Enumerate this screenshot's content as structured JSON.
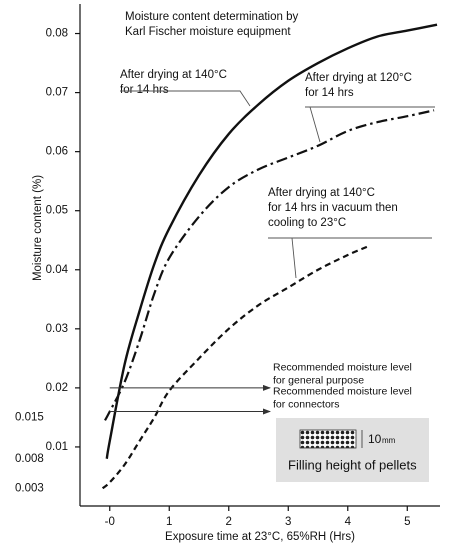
{
  "chart_data": {
    "type": "line",
    "title": [
      "Moisture content determination by",
      "Karl Fischer moisture equipment"
    ],
    "x_label": "Exposure time at 23°C, 65%RH (Hrs)",
    "y_label": "Moisture content  (%)",
    "xlim": [
      -0.5,
      5.55
    ],
    "ylim": [
      0,
      0.085
    ],
    "xticks": [
      {
        "value": 0,
        "label": "-0"
      },
      1,
      2,
      3,
      4,
      5
    ],
    "yticks": [
      0.01,
      0.02,
      0.03,
      0.04,
      0.05,
      0.06,
      0.07,
      0.08
    ],
    "outer_yticks": [
      0.015,
      0.008,
      0.003
    ],
    "series": [
      {
        "label": [
          "After drying  at 140°C",
          "for 14 hrs"
        ],
        "color": "#111111",
        "style": "solid",
        "x": [
          -0.05,
          0,
          0.25,
          0.5,
          0.75,
          1,
          1.5,
          2,
          2.5,
          3,
          3.5,
          4,
          4.5,
          5,
          5.5
        ],
        "values": [
          0.008,
          0.011,
          0.024,
          0.033,
          0.041,
          0.047,
          0.056,
          0.063,
          0.068,
          0.072,
          0.075,
          0.0775,
          0.0795,
          0.0805,
          0.0815
        ]
      },
      {
        "label": [
          "After drying  at 120°C",
          "for 14 hrs"
        ],
        "color": "#111111",
        "style": "dashdot",
        "x": [
          -0.08,
          0,
          0.25,
          0.5,
          0.75,
          1,
          1.5,
          2,
          2.5,
          3,
          3.5,
          4,
          4.5,
          5,
          5.45
        ],
        "values": [
          0.0145,
          0.016,
          0.021,
          0.028,
          0.036,
          0.042,
          0.049,
          0.054,
          0.057,
          0.059,
          0.061,
          0.0635,
          0.065,
          0.066,
          0.067
        ]
      },
      {
        "label": [
          "After drying  at 140°C",
          "for 14 hrs in vacuum then",
          "cooling to 23°C"
        ],
        "color": "#111111",
        "style": "dashed",
        "x": [
          -0.12,
          0,
          0.25,
          0.5,
          0.75,
          1,
          1.5,
          2,
          2.5,
          3,
          3.5,
          4,
          4.35
        ],
        "values": [
          0.003,
          0.004,
          0.007,
          0.011,
          0.015,
          0.0195,
          0.025,
          0.03,
          0.034,
          0.037,
          0.04,
          0.0425,
          0.044
        ]
      }
    ],
    "reference_lines": [
      {
        "value": 0.02,
        "label": [
          "Recommended moisture level",
          "for general purpose"
        ]
      },
      {
        "value": 0.016,
        "label": [
          "Recommended moisture level",
          "for connectors"
        ]
      }
    ],
    "inset": {
      "dimension": "10",
      "unit": "mm",
      "caption": "Filling height of pellets"
    }
  }
}
